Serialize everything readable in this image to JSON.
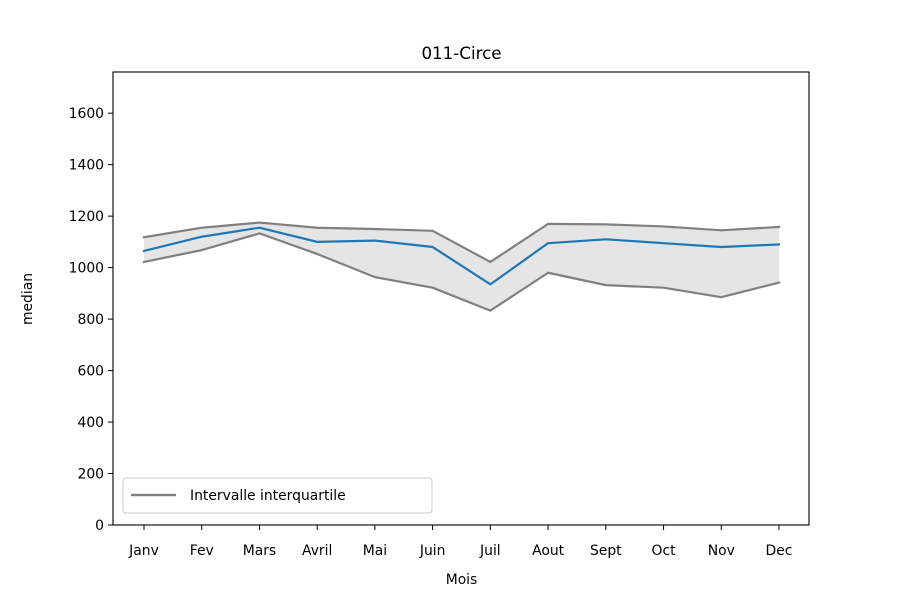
{
  "chart_data": {
    "type": "line",
    "title": "011-Circe",
    "xlabel": "Mois",
    "ylabel": "median",
    "categories": [
      "Janv",
      "Fev",
      "Mars",
      "Avril",
      "Mai",
      "Juin",
      "Juil",
      "Aout",
      "Sept",
      "Oct",
      "Nov",
      "Dec"
    ],
    "ylim": [
      0,
      1760
    ],
    "yticks": [
      0,
      200,
      400,
      600,
      800,
      1000,
      1200,
      1400,
      1600
    ],
    "series": [
      {
        "name": "",
        "role": "median",
        "color": "#1f77b4",
        "values": [
          1065,
          1120,
          1155,
          1100,
          1105,
          1080,
          935,
          1095,
          1110,
          1095,
          1080,
          1090
        ]
      },
      {
        "name": "Intervalle interquartile",
        "role": "upper-quartile",
        "color": "#808080",
        "values": [
          1118,
          1155,
          1175,
          1155,
          1150,
          1143,
          1022,
          1170,
          1168,
          1160,
          1145,
          1158
        ]
      },
      {
        "name": "",
        "role": "lower-quartile",
        "color": "#808080",
        "values": [
          1022,
          1068,
          1133,
          1053,
          963,
          922,
          833,
          980,
          932,
          922,
          885,
          942
        ]
      }
    ],
    "fill_between": {
      "color": "#e5e5e5",
      "between": [
        "upper-quartile",
        "lower-quartile"
      ]
    },
    "grid": false,
    "legend": {
      "placement": "lower-left",
      "entries": [
        "Intervalle interquartile"
      ]
    }
  }
}
